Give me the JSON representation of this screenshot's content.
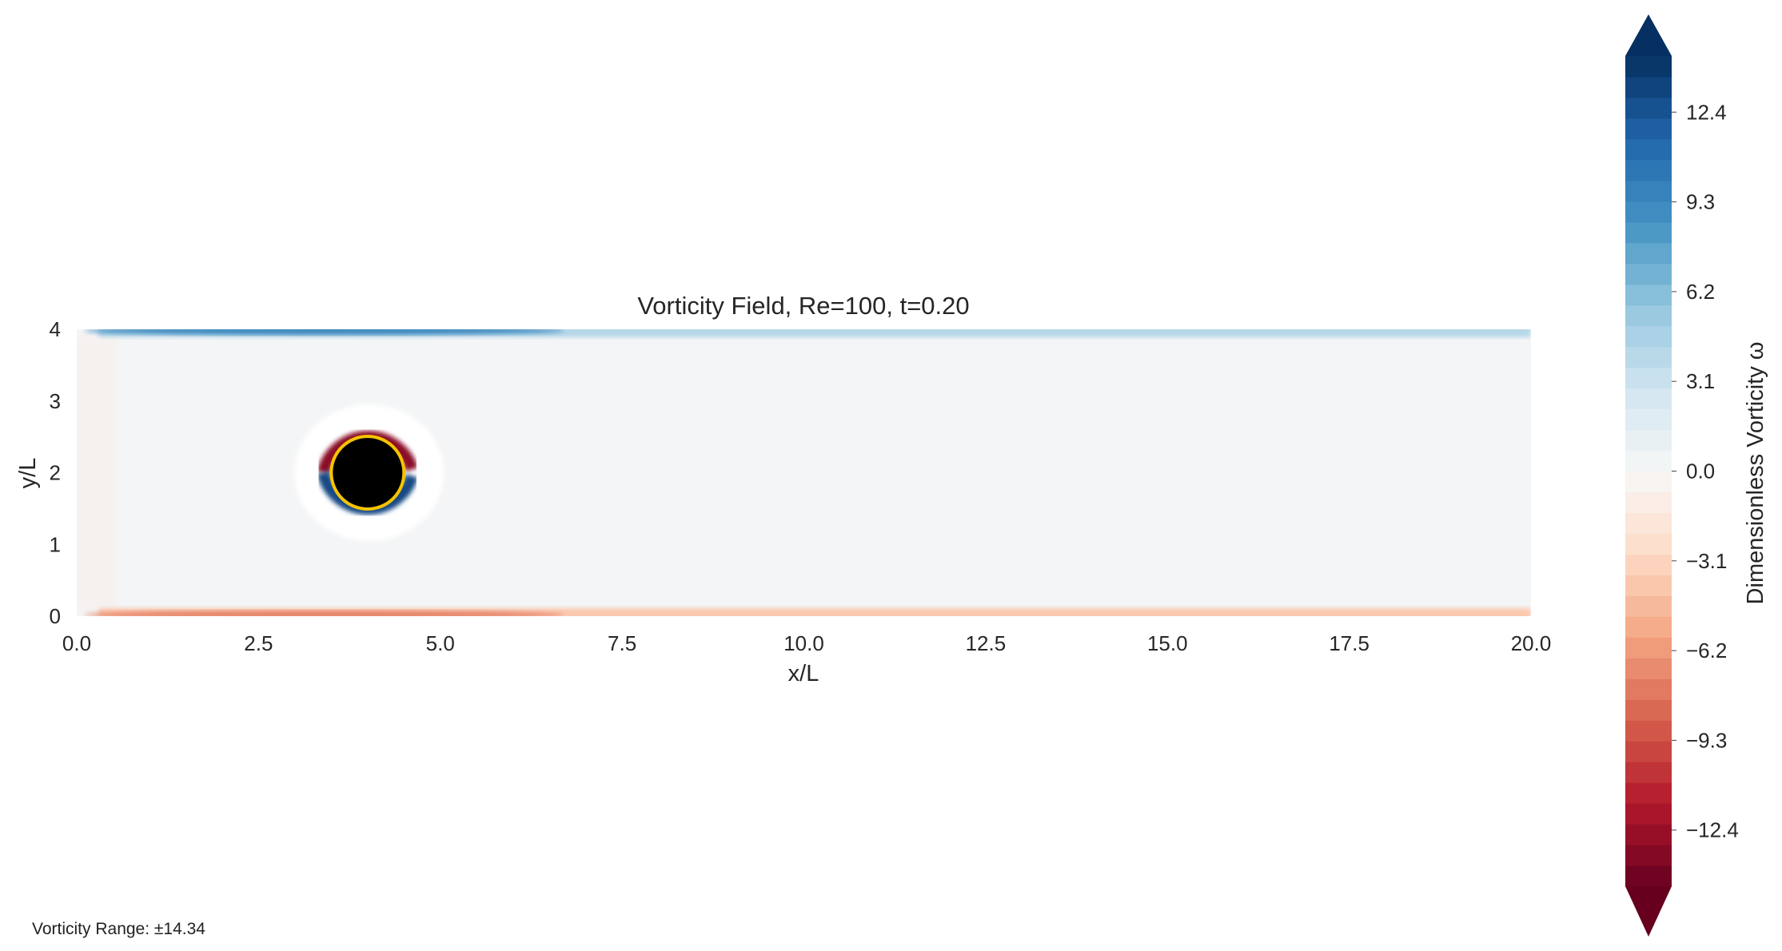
{
  "chart_data": {
    "type": "heatmap",
    "title": "Vorticity Field, Re=100, t=0.20",
    "xlabel": "x/L",
    "ylabel": "y/L",
    "xlim": [
      0,
      20
    ],
    "ylim": [
      0,
      4
    ],
    "x_ticks": [
      "0.0",
      "2.5",
      "5.0",
      "7.5",
      "10.0",
      "12.5",
      "15.0",
      "17.5",
      "20.0"
    ],
    "x_tick_values": [
      0,
      2.5,
      5,
      7.5,
      10,
      12.5,
      15,
      17.5,
      20
    ],
    "y_ticks": [
      "0",
      "1",
      "2",
      "3",
      "4"
    ],
    "y_tick_values": [
      0,
      1,
      2,
      3,
      4
    ],
    "colormap": "RdBu",
    "colorbar": {
      "label": "Dimensionless Vorticity ω",
      "vmin": -14.34,
      "vmax": 14.34,
      "extend": "both",
      "levels": 40,
      "ticks": [
        "−12.4",
        "−9.3",
        "−6.2",
        "−3.1",
        "0.0",
        "3.1",
        "6.2",
        "9.3",
        "12.4"
      ],
      "tick_values": [
        -12.4,
        -9.3,
        -6.2,
        -3.1,
        0.0,
        3.1,
        6.2,
        9.3,
        12.4
      ]
    },
    "cylinder": {
      "center": [
        4,
        2
      ],
      "radius": 0.5,
      "fill": "#000000",
      "edge": "#f5c400"
    },
    "features": {
      "top_wall_vorticity": 7.5,
      "bottom_wall_vorticity": -6.5,
      "cylinder_top_vorticity": -13.0,
      "cylinder_bottom_vorticity": 13.0
    },
    "grid": false
  },
  "footer": {
    "text": "Vorticity Range: ±14.34"
  },
  "colors": {
    "neg_dark": "#67001f",
    "neutral": "#f7f7f7",
    "pos_dark": "#053061",
    "cylinder_edge": "#f5c400"
  }
}
